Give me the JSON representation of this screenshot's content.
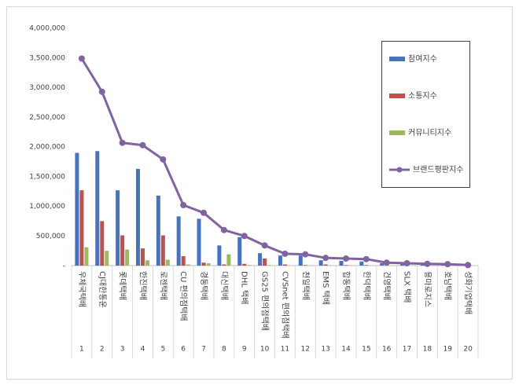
{
  "chart_data": {
    "type": "bar",
    "categories": [
      "우체국택배",
      "CJ대한통운",
      "롯데택배",
      "한진택배",
      "로젠택배",
      "CU 편의점택배",
      "경동택배",
      "대신택배",
      "DHL 택배",
      "GS25 편의점택배",
      "CVSnet 편의점택배",
      "천일택배",
      "EMS 택배",
      "합동택배",
      "한덕택배",
      "건영택배",
      "SLX 택배",
      "용마로지스",
      "호남택배",
      "성화기업택배"
    ],
    "category_numbers": [
      1,
      2,
      3,
      4,
      5,
      6,
      7,
      8,
      9,
      10,
      11,
      12,
      13,
      14,
      15,
      16,
      17,
      18,
      19,
      20
    ],
    "series": [
      {
        "name": "참여지수",
        "color": "#4472c4",
        "values": [
          1900000,
          1930000,
          1270000,
          1630000,
          1180000,
          830000,
          790000,
          340000,
          480000,
          210000,
          170000,
          170000,
          90000,
          80000,
          70000,
          40000,
          30000,
          20000,
          15000,
          10000
        ]
      },
      {
        "name": "소통지수",
        "color": "#c0504d",
        "values": [
          1270000,
          750000,
          510000,
          290000,
          510000,
          160000,
          50000,
          20000,
          30000,
          120000,
          20000,
          10000,
          20000,
          10000,
          10000,
          5000,
          5000,
          5000,
          5000,
          5000
        ]
      },
      {
        "name": "커뮤니티지수",
        "color": "#9bbb59",
        "values": [
          310000,
          250000,
          270000,
          90000,
          100000,
          20000,
          40000,
          190000,
          10000,
          10000,
          5000,
          5000,
          5000,
          5000,
          5000,
          2000,
          2000,
          2000,
          2000,
          2000
        ]
      },
      {
        "name": "브랜드평판지수",
        "color": "#8064a2",
        "type": "line",
        "values": [
          3490000,
          2930000,
          2070000,
          2030000,
          1790000,
          1020000,
          890000,
          600000,
          500000,
          340000,
          200000,
          190000,
          130000,
          120000,
          110000,
          50000,
          40000,
          30000,
          25000,
          10000
        ]
      }
    ],
    "ylim": [
      0,
      4000000
    ],
    "yticks": [
      {
        "value": 0,
        "label": "-"
      },
      {
        "value": 500000,
        "label": "500,000"
      },
      {
        "value": 1000000,
        "label": "1,000,000"
      },
      {
        "value": 1500000,
        "label": "1,500,000"
      },
      {
        "value": 2000000,
        "label": "2,000,000"
      },
      {
        "value": 2500000,
        "label": "2,500,000"
      },
      {
        "value": 3000000,
        "label": "3,000,000"
      },
      {
        "value": 3500000,
        "label": "3,500,000"
      },
      {
        "value": 4000000,
        "label": "4,000,000"
      }
    ],
    "grid": false,
    "legend": "top-right"
  }
}
